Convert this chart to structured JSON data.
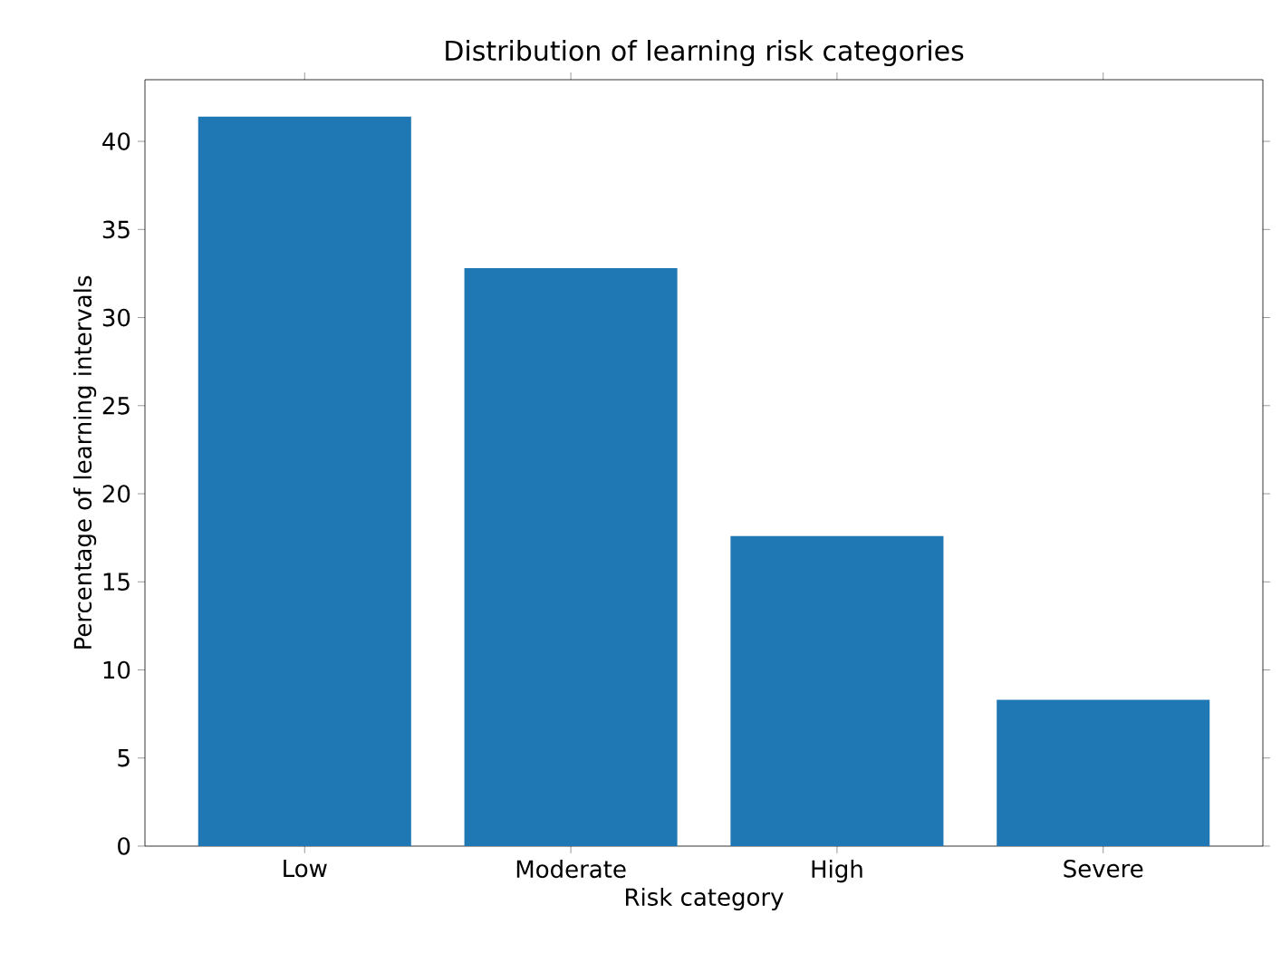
{
  "chart_data": {
    "type": "bar",
    "title": "Distribution of learning risk categories",
    "xlabel": "Risk category",
    "ylabel": "Percentage of learning intervals",
    "categories": [
      "Low",
      "Moderate",
      "High",
      "Severe"
    ],
    "values": [
      41.4,
      32.8,
      17.6,
      8.3
    ],
    "color": "#1f77b4",
    "ylim": [
      0,
      43.5
    ],
    "yticks": [
      0,
      5,
      10,
      15,
      20,
      25,
      30,
      35,
      40
    ]
  }
}
